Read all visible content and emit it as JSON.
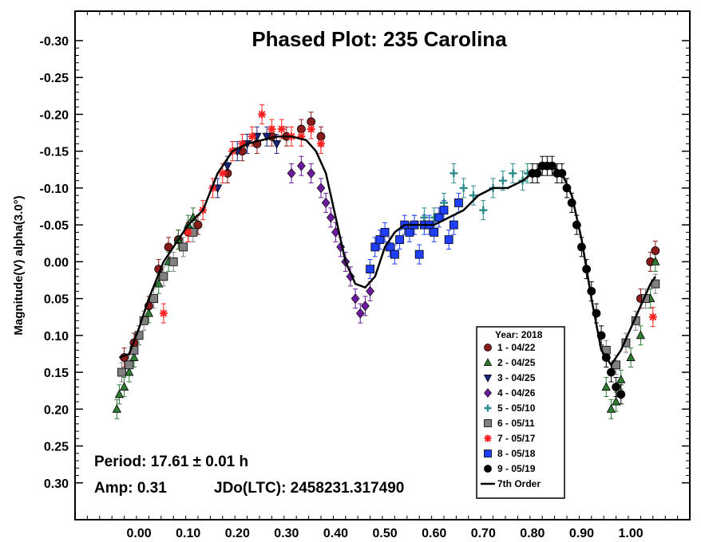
{
  "chart_data": {
    "type": "scatter",
    "title": "Phased Plot: 235 Carolina",
    "ylabel": "Magnitude(V) alpha(3.0°)",
    "xlabel": "",
    "xlim": [
      -0.13,
      1.12
    ],
    "ylim": [
      0.35,
      -0.34
    ],
    "y_inverted": true,
    "x_ticks": [
      0.0,
      0.1,
      0.2,
      0.3,
      0.4,
      0.5,
      0.6,
      0.7,
      0.8,
      0.9,
      1.0
    ],
    "x_tick_labels": [
      "0.00",
      "0.10",
      "0.20",
      "0.30",
      "0.40",
      "0.50",
      "0.60",
      "0.70",
      "0.80",
      "0.90",
      "1.00"
    ],
    "y_ticks": [
      -0.3,
      -0.25,
      -0.2,
      -0.15,
      -0.1,
      -0.05,
      0.0,
      0.05,
      0.1,
      0.15,
      0.2,
      0.25,
      0.3
    ],
    "y_tick_labels": [
      "-0.30",
      "-0.25",
      "-0.20",
      "-0.15",
      "-0.10",
      "-0.05",
      "0.00",
      "0.05",
      "0.10",
      "0.15",
      "0.20",
      "0.25",
      "0.30"
    ],
    "grid": false,
    "legend_position": "bottom-right",
    "legend_title": "Year: 2018",
    "annotations": {
      "period": "Period: 17.61 ± 0.01 h",
      "amp": "Amp: 0.31",
      "jdo": "JDo(LTC): 2458231.317490"
    },
    "fit_curve": {
      "name": "7th Order",
      "x": [
        -0.04,
        -0.02,
        0.0,
        0.02,
        0.05,
        0.08,
        0.1,
        0.13,
        0.16,
        0.19,
        0.22,
        0.25,
        0.28,
        0.31,
        0.34,
        0.36,
        0.38,
        0.4,
        0.42,
        0.44,
        0.46,
        0.48,
        0.5,
        0.52,
        0.54,
        0.57,
        0.6,
        0.63,
        0.66,
        0.69,
        0.72,
        0.75,
        0.78,
        0.8,
        0.82,
        0.84,
        0.86,
        0.88,
        0.9,
        0.92,
        0.94,
        0.96,
        0.98,
        1.0,
        1.02,
        1.04,
        1.05
      ],
      "y": [
        0.13,
        0.125,
        0.09,
        0.05,
        0.0,
        -0.03,
        -0.05,
        -0.07,
        -0.12,
        -0.15,
        -0.16,
        -0.165,
        -0.17,
        -0.17,
        -0.165,
        -0.15,
        -0.12,
        -0.06,
        0.0,
        0.03,
        0.035,
        0.02,
        -0.02,
        -0.04,
        -0.05,
        -0.05,
        -0.05,
        -0.06,
        -0.07,
        -0.09,
        -0.1,
        -0.1,
        -0.11,
        -0.12,
        -0.13,
        -0.13,
        -0.12,
        -0.09,
        -0.03,
        0.05,
        0.12,
        0.14,
        0.12,
        0.09,
        0.06,
        0.03,
        0.02
      ]
    },
    "series": [
      {
        "name": "1 - 04/22",
        "marker": "circle",
        "color": "#8b1a1a",
        "x": [
          -0.03,
          -0.01,
          0.02,
          0.04,
          0.06,
          0.08,
          0.1,
          0.12,
          0.18,
          0.21,
          0.24,
          0.27,
          0.3,
          0.33,
          0.35,
          0.37,
          1.02,
          1.04,
          1.05
        ],
        "y": [
          0.13,
          0.11,
          0.06,
          0.01,
          -0.02,
          -0.03,
          -0.04,
          -0.05,
          -0.12,
          -0.15,
          -0.16,
          -0.17,
          -0.17,
          -0.18,
          -0.19,
          -0.17,
          0.05,
          0.0,
          -0.015
        ]
      },
      {
        "name": "2 - 04/25",
        "marker": "triangle-up",
        "color": "#2e7d32",
        "x": [
          -0.045,
          -0.04,
          -0.03,
          -0.02,
          -0.01,
          0.0,
          0.02,
          0.04,
          0.06,
          0.08,
          0.1,
          0.11,
          0.95,
          0.96,
          0.97,
          0.98,
          1.0,
          1.02,
          1.04,
          1.05
        ],
        "y": [
          0.2,
          0.18,
          0.17,
          0.15,
          0.13,
          0.1,
          0.07,
          0.03,
          0.0,
          -0.03,
          -0.05,
          -0.06,
          0.17,
          0.2,
          0.19,
          0.16,
          0.13,
          0.1,
          0.05,
          0.0
        ]
      },
      {
        "name": "3 - 04/25",
        "marker": "triangle-down",
        "color": "#1a237e",
        "x": [
          0.16,
          0.18,
          0.2,
          0.22,
          0.24,
          0.26,
          0.28
        ],
        "y": [
          -0.1,
          -0.13,
          -0.15,
          -0.16,
          -0.17,
          -0.17,
          -0.16
        ]
      },
      {
        "name": "4 - 04/26",
        "marker": "diamond",
        "color": "#6a1b9a",
        "x": [
          0.31,
          0.33,
          0.35,
          0.37,
          0.38,
          0.39,
          0.4,
          0.41,
          0.42,
          0.43,
          0.44,
          0.45,
          0.46,
          0.47
        ],
        "y": [
          -0.12,
          -0.13,
          -0.12,
          -0.1,
          -0.08,
          -0.06,
          -0.04,
          -0.02,
          0.0,
          0.02,
          0.05,
          0.07,
          0.06,
          0.04
        ]
      },
      {
        "name": "5 - 05/10",
        "marker": "plus",
        "color": "#2a8a8a",
        "x": [
          0.56,
          0.58,
          0.6,
          0.62,
          0.64,
          0.66,
          0.68,
          0.7,
          0.72,
          0.74,
          0.76,
          0.78,
          0.79
        ],
        "y": [
          -0.05,
          -0.06,
          -0.06,
          -0.08,
          -0.12,
          -0.1,
          -0.09,
          -0.07,
          -0.1,
          -0.11,
          -0.12,
          -0.11,
          -0.12
        ]
      },
      {
        "name": "6 - 05/11",
        "marker": "square",
        "color": "#808080",
        "x": [
          -0.035,
          -0.02,
          -0.01,
          0.0,
          0.01,
          0.03,
          0.05,
          0.07,
          0.09,
          0.11,
          0.95,
          0.97,
          0.99,
          1.01,
          1.03,
          1.05
        ],
        "y": [
          0.15,
          0.14,
          0.12,
          0.1,
          0.08,
          0.05,
          0.02,
          0.0,
          -0.02,
          -0.04,
          0.12,
          0.14,
          0.11,
          0.08,
          0.05,
          0.03
        ]
      },
      {
        "name": "7 - 05/17",
        "marker": "asterisk",
        "color": "#ff2222",
        "x": [
          0.05,
          0.1,
          0.13,
          0.15,
          0.17,
          0.19,
          0.21,
          0.23,
          0.25,
          0.27,
          0.29,
          0.31,
          0.33,
          0.35,
          0.37,
          1.045
        ],
        "y": [
          0.07,
          -0.04,
          -0.07,
          -0.1,
          -0.12,
          -0.15,
          -0.16,
          -0.17,
          -0.2,
          -0.18,
          -0.18,
          -0.17,
          -0.17,
          -0.18,
          -0.16,
          0.075
        ]
      },
      {
        "name": "8 - 05/18",
        "marker": "square",
        "color": "#1f3fff",
        "x": [
          0.47,
          0.48,
          0.49,
          0.5,
          0.51,
          0.52,
          0.53,
          0.54,
          0.55,
          0.56,
          0.57,
          0.58,
          0.59,
          0.6,
          0.61,
          0.62,
          0.63,
          0.64,
          0.65
        ],
        "y": [
          0.01,
          -0.02,
          -0.03,
          -0.04,
          -0.02,
          -0.01,
          -0.03,
          -0.05,
          -0.04,
          -0.05,
          -0.01,
          -0.05,
          -0.05,
          -0.04,
          -0.06,
          -0.07,
          -0.03,
          -0.05,
          -0.08
        ]
      },
      {
        "name": "9 - 05/19",
        "marker": "circle",
        "color": "#000000",
        "x": [
          0.8,
          0.81,
          0.82,
          0.83,
          0.84,
          0.85,
          0.86,
          0.87,
          0.88,
          0.89,
          0.9,
          0.91,
          0.92,
          0.93,
          0.94,
          0.95,
          0.96,
          0.97,
          0.98
        ],
        "y": [
          -0.12,
          -0.12,
          -0.13,
          -0.13,
          -0.13,
          -0.12,
          -0.12,
          -0.1,
          -0.08,
          -0.05,
          -0.02,
          0.01,
          0.04,
          0.07,
          0.1,
          0.13,
          0.15,
          0.17,
          0.18
        ]
      }
    ]
  }
}
